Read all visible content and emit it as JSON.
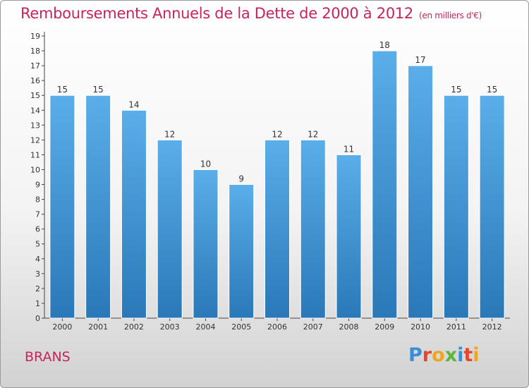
{
  "header": {
    "title": "Remboursements Annuels de la Dette de 2000 à 2012",
    "unit": "(en milliers d'€)"
  },
  "footer": {
    "town": "BRANS",
    "logo": {
      "letters": [
        "P",
        "r",
        "o",
        "x",
        "i",
        "t",
        "i"
      ],
      "colors": [
        "#3b8ed6",
        "#e8452a",
        "#f0a51f",
        "#5db63b",
        "#3b8ed6",
        "#e8452a",
        "#f0a51f"
      ]
    }
  },
  "colors": {
    "bar_top": "#5aaee9",
    "bar_bottom": "#2a78b8",
    "accent": "#c8245c"
  },
  "chart_data": {
    "type": "bar",
    "categories": [
      "2000",
      "2001",
      "2002",
      "2003",
      "2004",
      "2005",
      "2006",
      "2007",
      "2008",
      "2009",
      "2010",
      "2011",
      "2012"
    ],
    "values": [
      15,
      15,
      14,
      12,
      10,
      9,
      12,
      12,
      11,
      18,
      17,
      15,
      15
    ],
    "data_labels": [
      "15",
      "15",
      "14",
      "12",
      "10",
      "9",
      "12",
      "12",
      "11",
      "18",
      "17",
      "15",
      "15"
    ],
    "title": "Remboursements Annuels de la Dette de 2000 à 2012",
    "xlabel": "",
    "ylabel": "",
    "ylim": [
      0,
      19
    ],
    "yticks": [
      "0",
      "1",
      "2",
      "3",
      "4",
      "5",
      "6",
      "7",
      "8",
      "9",
      "10",
      "11",
      "12",
      "13",
      "14",
      "15",
      "16",
      "17",
      "18",
      "19"
    ],
    "grid": false,
    "legend": "none"
  }
}
